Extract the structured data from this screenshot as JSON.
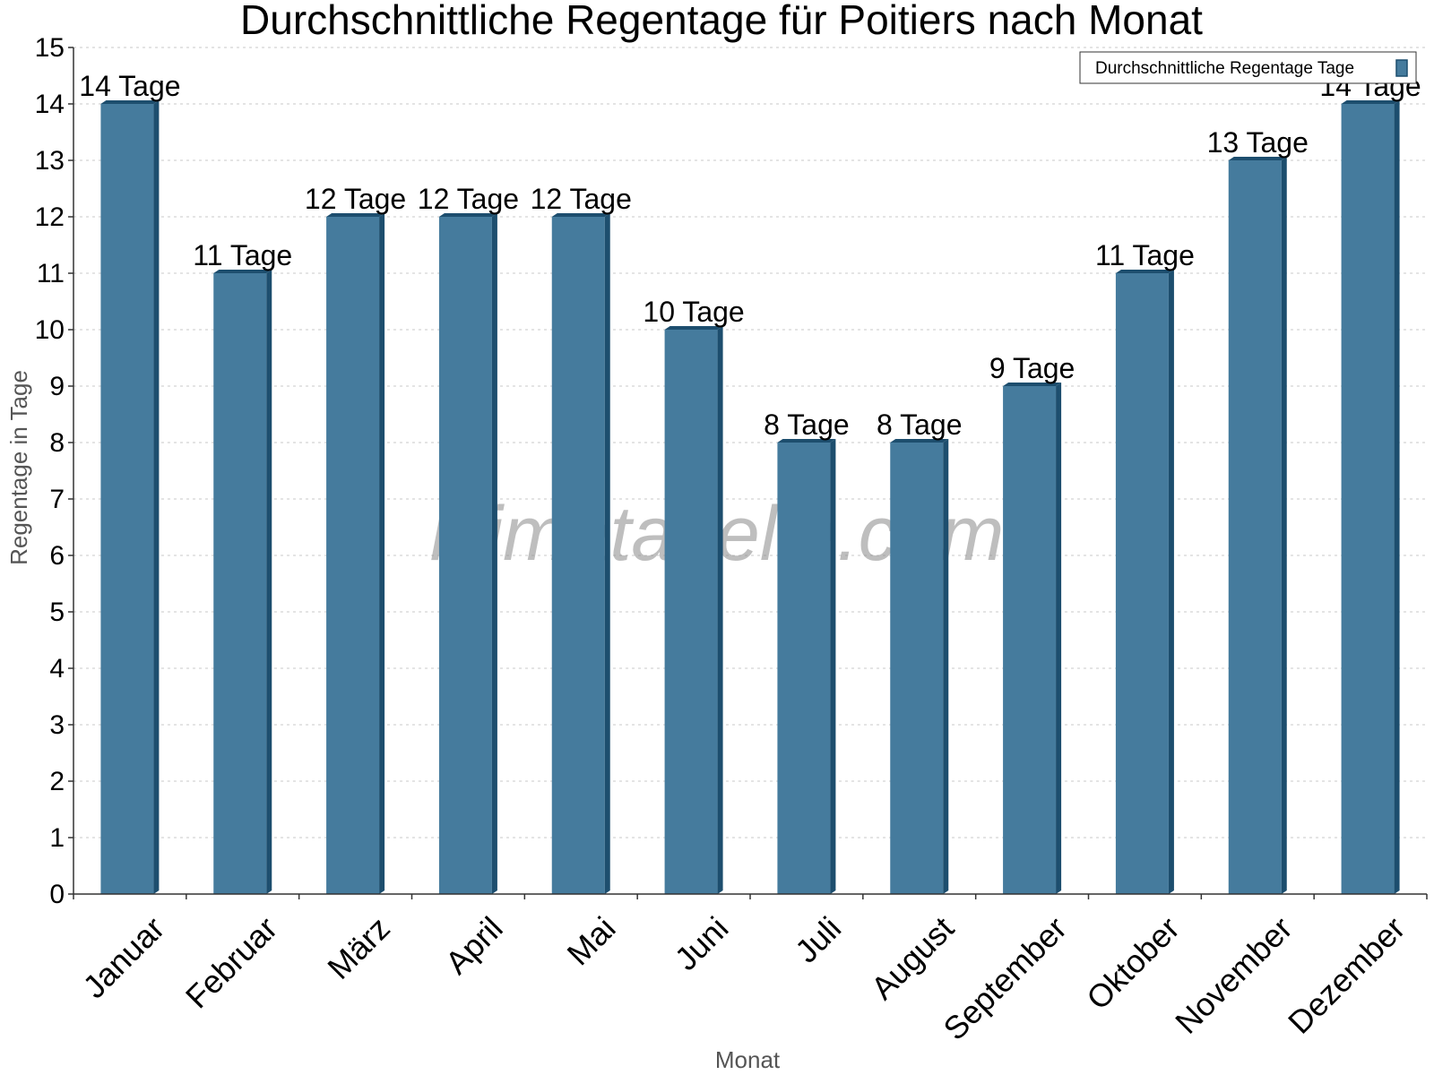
{
  "chart_data": {
    "type": "bar",
    "title": "Durchschnittliche Regentage für Poitiers nach Monat",
    "xlabel": "Monat",
    "ylabel": "Regentage in Tage",
    "ylim": [
      0,
      15
    ],
    "yticks": [
      "0",
      "1",
      "2",
      "3",
      "4",
      "5",
      "6",
      "7",
      "8",
      "9",
      "10",
      "11",
      "12",
      "13",
      "14",
      "15"
    ],
    "grid": true,
    "legend_position": "top-right",
    "categories": [
      "Januar",
      "Februar",
      "März",
      "April",
      "Mai",
      "Juni",
      "Juli",
      "August",
      "September",
      "Oktober",
      "November",
      "Dezember"
    ],
    "series": [
      {
        "name": "Durchschnittliche Regentage Tage",
        "values": [
          14,
          11,
          12,
          12,
          12,
          10,
          8,
          8,
          9,
          11,
          13,
          14
        ],
        "labels": [
          "14 Tage",
          "11 Tage",
          "12 Tage",
          "12 Tage",
          "12 Tage",
          "10 Tage",
          "8 Tage",
          "8 Tage",
          "9 Tage",
          "11 Tage",
          "13 Tage",
          "14 Tage"
        ],
        "color": "#457b9d",
        "top_color": "#1d4e6e",
        "side_color": "#1d4e6e"
      }
    ]
  },
  "watermark": "klimatabelle.com"
}
